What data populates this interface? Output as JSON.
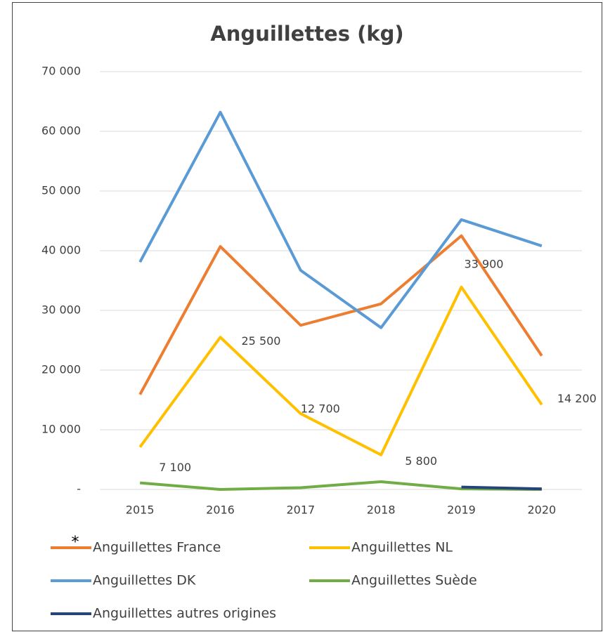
{
  "chart_data": {
    "type": "line",
    "title": "Anguillettes (kg)",
    "annotation": "*",
    "categories": [
      "2015",
      "2016",
      "2017",
      "2018",
      "2019",
      "2020"
    ],
    "series": [
      {
        "name": "Anguillettes France",
        "color": "#ED7D31",
        "values": [
          15900,
          40700,
          27500,
          31100,
          42500,
          22400
        ]
      },
      {
        "name": "Anguillettes NL",
        "color": "#FFC000",
        "values": [
          7100,
          25500,
          12700,
          5800,
          33900,
          14200
        ],
        "value_labels": [
          "7 100",
          "25 500",
          "12 700",
          "5 800",
          "33 900",
          "14 200"
        ]
      },
      {
        "name": "Anguillettes DK",
        "color": "#5B9BD5",
        "values": [
          38100,
          63200,
          36700,
          27100,
          45200,
          40800
        ]
      },
      {
        "name": "Anguillettes Suède",
        "color": "#70AD47",
        "values": [
          1100,
          0,
          300,
          1300,
          100,
          0
        ]
      },
      {
        "name": "Anguillettes autres origines",
        "color": "#264478",
        "values": [
          null,
          null,
          null,
          null,
          400,
          100
        ]
      }
    ],
    "ylim": [
      0,
      70000
    ],
    "yticks": [
      {
        "value": 0,
        "label": "-"
      },
      {
        "value": 10000,
        "label": "10 000"
      },
      {
        "value": 20000,
        "label": "20 000"
      },
      {
        "value": 30000,
        "label": "30 000"
      },
      {
        "value": 40000,
        "label": "40 000"
      },
      {
        "value": 50000,
        "label": "50 000"
      },
      {
        "value": 60000,
        "label": "60 000"
      },
      {
        "value": 70000,
        "label": "70 000"
      }
    ],
    "grid": true
  }
}
